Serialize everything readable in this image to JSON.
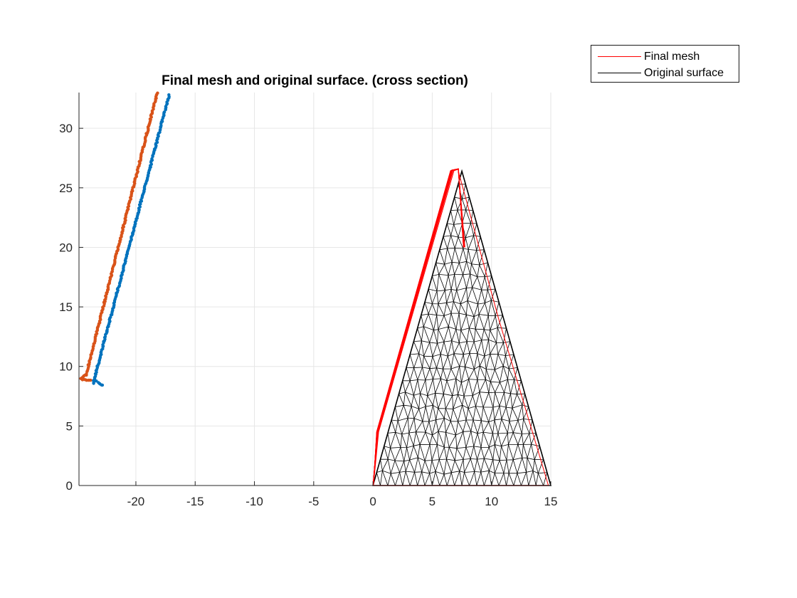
{
  "chart_data": {
    "type": "line",
    "title": "Final mesh and original surface. (cross section)",
    "xlabel": "",
    "ylabel": "",
    "xlim": [
      -24.8,
      15
    ],
    "ylim": [
      0,
      33
    ],
    "xticks": [
      -20,
      -15,
      -10,
      -5,
      0,
      5,
      10,
      15
    ],
    "yticks": [
      0,
      5,
      10,
      15,
      20,
      25,
      30
    ],
    "grid": true,
    "legend": {
      "position": "outside-top-right",
      "entries": [
        {
          "label": "Final mesh",
          "color": "#ff0000"
        },
        {
          "label": "Original surface",
          "color": "#000000"
        }
      ]
    },
    "series": [
      {
        "name": "Final mesh",
        "color": "#ff0000",
        "shape": "triangle-outline",
        "points": [
          [
            0,
            0
          ],
          [
            0.4,
            4.5
          ],
          [
            6.7,
            26.5
          ],
          [
            7.2,
            26.6
          ],
          [
            14.8,
            0
          ]
        ]
      },
      {
        "name": "Original surface",
        "color": "#000000",
        "shape": "triangulated-mesh",
        "points": [
          [
            0,
            0
          ],
          [
            7.5,
            26.4
          ],
          [
            15,
            0
          ]
        ]
      },
      {
        "color": "#d95319",
        "marker": "dots",
        "points": [
          [
            -24.6,
            9.0
          ],
          [
            -24.2,
            9.3
          ],
          [
            -18.2,
            33.0
          ]
        ]
      },
      {
        "color": "#d95319",
        "marker": "dots",
        "points": [
          [
            -24.6,
            8.9
          ],
          [
            -23.8,
            8.8
          ]
        ]
      },
      {
        "color": "#0072bd",
        "marker": "dots",
        "points": [
          [
            -23.6,
            8.6
          ],
          [
            -17.2,
            32.8
          ]
        ]
      },
      {
        "color": "#0072bd",
        "marker": "dots",
        "points": [
          [
            -23.4,
            8.8
          ],
          [
            -22.8,
            8.4
          ]
        ]
      }
    ]
  },
  "colors": {
    "axis": "#262626",
    "grid": "#e6e6e6",
    "mesh": "#000000",
    "final_mesh": "#ff0000",
    "orange": "#d95319",
    "blue": "#0072bd"
  }
}
